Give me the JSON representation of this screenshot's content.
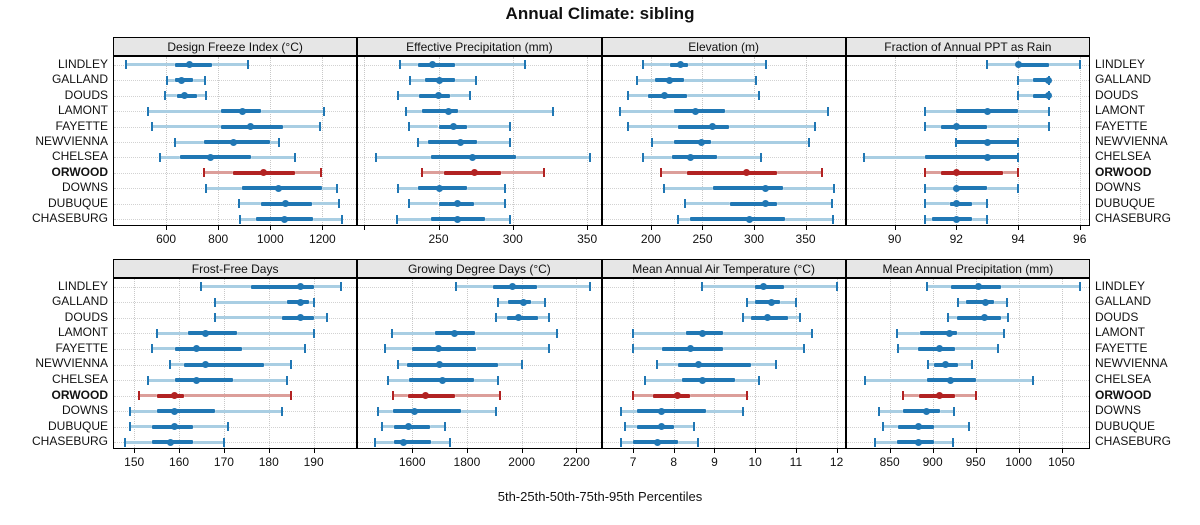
{
  "chart_data": {
    "type": "scatter",
    "subtype": "percentile-interval-dotplot",
    "title": "Annual Climate: sibling",
    "caption": "5th-25th-50th-75th-95th Percentiles",
    "percentiles": [
      "5th",
      "25th",
      "50th",
      "75th",
      "95th"
    ],
    "legend_position": "none",
    "grid": "dotted",
    "sites": [
      "LINDLEY",
      "GALLAND",
      "DOUDS",
      "LAMONT",
      "FAYETTE",
      "NEWVIENNA",
      "CHELSEA",
      "ORWOOD",
      "DOWNS",
      "DUBUQUE",
      "CHASEBURG"
    ],
    "highlighted_site": "ORWOOD",
    "colors": {
      "series": "#2077b4",
      "series_light": "#a9cee3",
      "highlight": "#b22222",
      "highlight_light": "#dc9e9a",
      "header_bg": "#e6e6e6",
      "grid": "#c8c8c8",
      "border": "#000000",
      "background": "#ffffff"
    },
    "panels": [
      {
        "title": "Design Freeze Index (°C)",
        "row": 1,
        "ticks": [
          600,
          800,
          1000,
          1200
        ],
        "tick_labels": [
          "600",
          "800",
          "1000",
          "1200"
        ],
        "xlim": [
          400,
          1330
        ],
        "values": [
          [
            445,
            635,
            690,
            775,
            915
          ],
          [
            605,
            635,
            660,
            705,
            750
          ],
          [
            595,
            640,
            670,
            720,
            755
          ],
          [
            530,
            810,
            895,
            965,
            1205
          ],
          [
            545,
            810,
            925,
            1050,
            1190
          ],
          [
            635,
            745,
            860,
            1000,
            1035
          ],
          [
            575,
            655,
            770,
            925,
            1095
          ],
          [
            745,
            855,
            975,
            1095,
            1195
          ],
          [
            755,
            890,
            1030,
            1200,
            1255
          ],
          [
            880,
            965,
            1060,
            1160,
            1265
          ],
          [
            885,
            945,
            1055,
            1165,
            1275
          ]
        ]
      },
      {
        "title": "Effective Precipitation (mm)",
        "row": 1,
        "ticks": [
          200,
          250,
          300,
          350
        ],
        "tick_labels": [
          "",
          "250",
          "300",
          "350"
        ],
        "xlim": [
          196,
          359
        ],
        "values": [
          [
            224,
            236,
            246,
            261,
            308
          ],
          [
            231,
            241,
            251,
            261,
            275
          ],
          [
            223,
            237,
            250,
            258,
            271
          ],
          [
            228,
            239,
            257,
            263,
            327
          ],
          [
            230,
            250,
            260,
            269,
            298
          ],
          [
            236,
            243,
            265,
            276,
            298
          ],
          [
            208,
            245,
            273,
            302,
            352
          ],
          [
            239,
            254,
            274,
            292,
            321
          ],
          [
            223,
            236,
            251,
            269,
            295
          ],
          [
            230,
            250,
            263,
            274,
            295
          ],
          [
            222,
            245,
            263,
            281,
            298
          ]
        ]
      },
      {
        "title": "Elevation (m)",
        "row": 1,
        "ticks": [
          200,
          250,
          300,
          350
        ],
        "tick_labels": [
          "200",
          "250",
          "300",
          "350"
        ],
        "xlim": [
          153,
          388
        ],
        "values": [
          [
            192,
            218,
            229,
            236,
            312
          ],
          [
            186,
            204,
            218,
            232,
            302
          ],
          [
            178,
            197,
            213,
            235,
            305
          ],
          [
            170,
            222,
            243,
            272,
            372
          ],
          [
            178,
            226,
            260,
            276,
            359
          ],
          [
            201,
            222,
            249,
            258,
            353
          ],
          [
            192,
            220,
            238,
            264,
            307
          ],
          [
            210,
            235,
            293,
            322,
            366
          ],
          [
            213,
            260,
            311,
            328,
            378
          ],
          [
            233,
            277,
            311,
            322,
            376
          ],
          [
            226,
            238,
            296,
            330,
            377
          ]
        ]
      },
      {
        "title": "Fraction of Annual PPT as Rain",
        "row": 1,
        "ticks": [
          90,
          92,
          94,
          96
        ],
        "tick_labels": [
          "90",
          "92",
          "94",
          "96"
        ],
        "xlim": [
          88.45,
          96.3
        ],
        "values": [
          [
            93,
            94,
            94,
            95,
            96
          ],
          [
            94,
            94.5,
            95,
            95,
            95
          ],
          [
            94,
            94.5,
            95,
            95,
            95
          ],
          [
            91,
            92,
            93,
            94,
            95
          ],
          [
            91,
            91.5,
            92,
            93,
            95
          ],
          [
            92,
            92,
            93,
            94,
            94
          ],
          [
            89,
            91,
            93,
            94,
            94
          ],
          [
            91,
            91.5,
            92,
            93.5,
            94
          ],
          [
            91,
            92,
            92,
            93,
            94
          ],
          [
            91,
            91.8,
            92,
            92.5,
            93
          ],
          [
            91,
            91.2,
            92,
            92.5,
            93
          ]
        ]
      },
      {
        "title": "Frost-Free Days",
        "row": 2,
        "ticks": [
          150,
          160,
          170,
          180,
          190
        ],
        "tick_labels": [
          "150",
          "160",
          "170",
          "180",
          "190"
        ],
        "xlim": [
          145.5,
          199.5
        ],
        "values": [
          [
            165,
            176,
            187,
            190,
            196
          ],
          [
            168,
            184,
            187,
            189,
            190
          ],
          [
            168,
            183,
            187,
            190,
            193
          ],
          [
            155,
            162,
            166,
            173,
            190
          ],
          [
            154,
            159,
            164,
            174,
            188
          ],
          [
            158,
            161,
            166,
            179,
            185
          ],
          [
            153,
            159,
            164,
            172,
            184
          ],
          [
            151,
            155,
            159,
            161,
            185
          ],
          [
            149,
            155,
            159,
            168,
            183
          ],
          [
            149,
            154,
            159,
            163,
            171
          ],
          [
            148,
            154,
            158,
            163,
            170
          ]
        ]
      },
      {
        "title": "Growing Degree Days (°C)",
        "row": 2,
        "ticks": [
          1600,
          1800,
          2000,
          2200
        ],
        "tick_labels": [
          "1600",
          "1800",
          "2000",
          "2200"
        ],
        "xlim": [
          1403,
          2288
        ],
        "values": [
          [
            1760,
            1895,
            1965,
            2055,
            2250
          ],
          [
            1915,
            1950,
            2005,
            2035,
            2085
          ],
          [
            1905,
            1945,
            1990,
            2060,
            2100
          ],
          [
            1525,
            1685,
            1755,
            1830,
            2130
          ],
          [
            1500,
            1600,
            1695,
            1835,
            2100
          ],
          [
            1550,
            1580,
            1700,
            1915,
            2000
          ],
          [
            1510,
            1590,
            1710,
            1825,
            1915
          ],
          [
            1530,
            1585,
            1650,
            1755,
            1920
          ],
          [
            1475,
            1530,
            1610,
            1780,
            1905
          ],
          [
            1490,
            1535,
            1585,
            1665,
            1720
          ],
          [
            1465,
            1535,
            1570,
            1670,
            1740
          ]
        ]
      },
      {
        "title": "Mean Annual Air Temperature (°C)",
        "row": 2,
        "ticks": [
          7,
          8,
          9,
          10,
          11,
          12
        ],
        "tick_labels": [
          "7",
          "8",
          "9",
          "10",
          "11",
          "12"
        ],
        "xlim": [
          6.25,
          12.2
        ],
        "values": [
          [
            8.7,
            10.0,
            10.2,
            10.7,
            12.0
          ],
          [
            9.8,
            10.0,
            10.4,
            10.6,
            11.0
          ],
          [
            9.7,
            9.9,
            10.3,
            10.8,
            11.1
          ],
          [
            7.0,
            8.3,
            8.7,
            9.2,
            11.4
          ],
          [
            7.0,
            7.7,
            8.4,
            9.2,
            11.2
          ],
          [
            7.6,
            8.1,
            8.6,
            9.9,
            10.5
          ],
          [
            7.3,
            8.2,
            8.7,
            9.5,
            10.1
          ],
          [
            7.0,
            7.5,
            8.1,
            8.4,
            9.8
          ],
          [
            6.7,
            7.1,
            7.7,
            8.8,
            9.7
          ],
          [
            6.8,
            7.1,
            7.7,
            8.0,
            8.5
          ],
          [
            6.7,
            7.0,
            7.6,
            8.1,
            8.6
          ]
        ]
      },
      {
        "title": "Mean Annual Precipitation (mm)",
        "row": 2,
        "ticks": [
          850,
          900,
          950,
          1000,
          1050
        ],
        "tick_labels": [
          "850",
          "900",
          "950",
          "1000",
          "1050"
        ],
        "xlim": [
          800,
          1082
        ],
        "values": [
          [
            893,
            921,
            953,
            979,
            1072
          ],
          [
            929,
            939,
            962,
            971,
            987
          ],
          [
            918,
            928,
            960,
            980,
            988
          ],
          [
            858,
            885,
            920,
            928,
            983
          ],
          [
            860,
            883,
            908,
            926,
            976
          ],
          [
            894,
            902,
            915,
            930,
            946
          ],
          [
            821,
            893,
            921,
            951,
            1017
          ],
          [
            865,
            884,
            908,
            926,
            950
          ],
          [
            837,
            866,
            893,
            908,
            925
          ],
          [
            842,
            860,
            883,
            901,
            942
          ],
          [
            833,
            858,
            883,
            902,
            924
          ]
        ]
      }
    ]
  }
}
